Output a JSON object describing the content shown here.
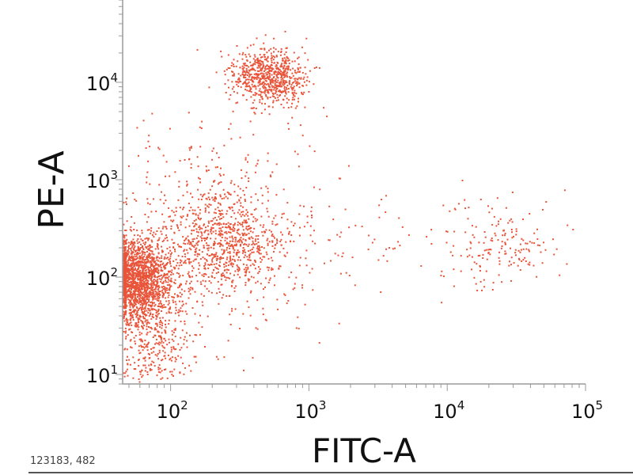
{
  "chart_data": {
    "type": "scatter",
    "xlabel": "FITC-A",
    "ylabel": "PE-A",
    "x_scale": "log",
    "y_scale": "log",
    "xlim": [
      45,
      100000
    ],
    "ylim": [
      8,
      70000
    ],
    "x_ticks": [
      {
        "value": 100,
        "base": "10",
        "exp": "2"
      },
      {
        "value": 1000,
        "base": "10",
        "exp": "3"
      },
      {
        "value": 10000,
        "base": "10",
        "exp": "4"
      },
      {
        "value": 100000,
        "base": "10",
        "exp": "5"
      }
    ],
    "y_ticks": [
      {
        "value": 10,
        "base": "10",
        "exp": "1"
      },
      {
        "value": 100,
        "base": "10",
        "exp": "2"
      },
      {
        "value": 1000,
        "base": "10",
        "exp": "3"
      },
      {
        "value": 10000,
        "base": "10",
        "exp": "4"
      }
    ],
    "point_color": "#e8553a",
    "axis_color": "#9a9a9a",
    "populations": [
      {
        "x_center": 55,
        "y_center": 100,
        "x_spread": 0.12,
        "y_spread": 0.2,
        "count": 1700
      },
      {
        "x_center": 70,
        "y_center": 28,
        "x_spread": 0.14,
        "y_spread": 0.35,
        "count": 550
      },
      {
        "x_center": 500,
        "y_center": 11500,
        "x_spread": 0.14,
        "y_spread": 0.14,
        "count": 750
      },
      {
        "x_center": 250,
        "y_center": 220,
        "x_spread": 0.22,
        "y_spread": 0.25,
        "count": 650
      },
      {
        "x_center": 180,
        "y_center": 300,
        "x_spread": 0.45,
        "y_spread": 0.55,
        "count": 600
      },
      {
        "x_center": 25000,
        "y_center": 200,
        "x_spread": 0.2,
        "y_spread": 0.22,
        "count": 170
      },
      {
        "x_center": 3000,
        "y_center": 250,
        "x_spread": 0.45,
        "y_spread": 0.3,
        "count": 60
      }
    ]
  },
  "footer": {
    "stats": "123183, 482"
  }
}
